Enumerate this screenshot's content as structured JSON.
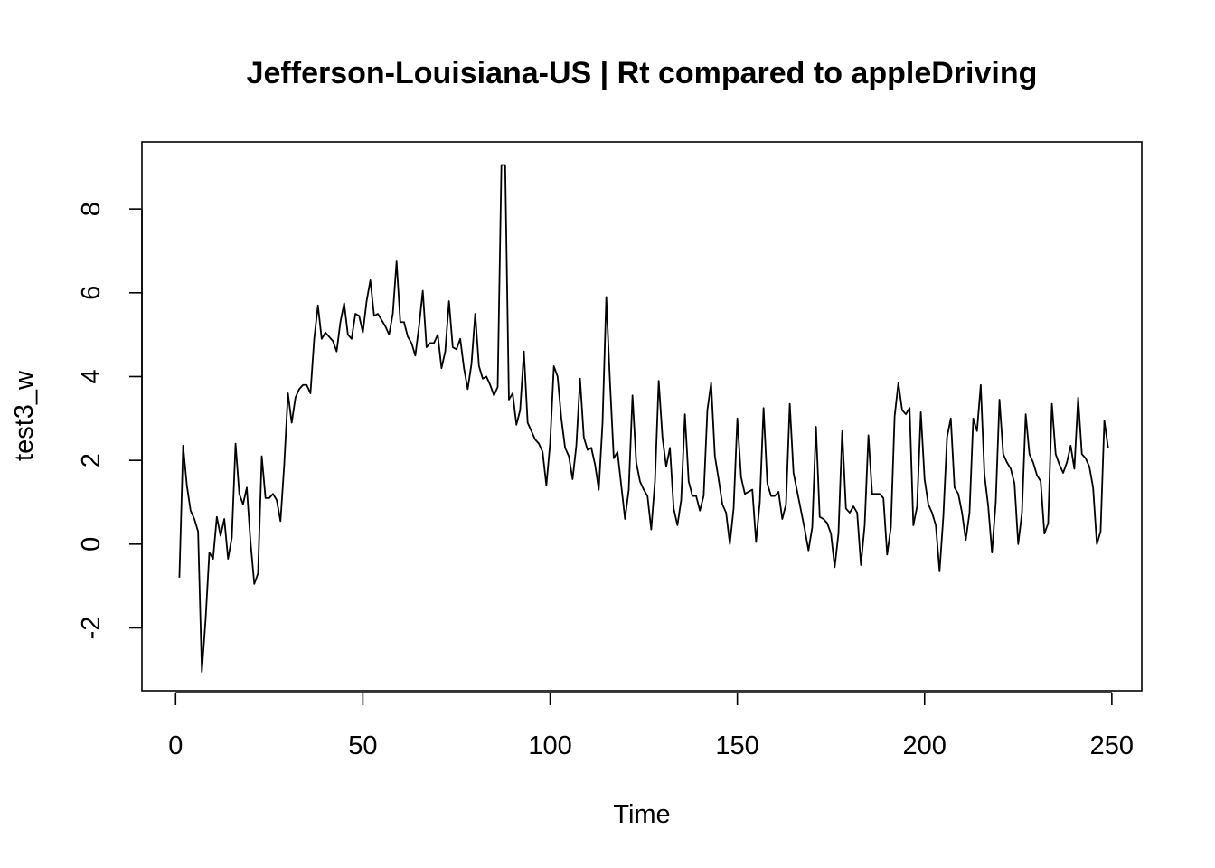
{
  "chart_data": {
    "type": "line",
    "title": "Jefferson-Louisiana-US | Rt compared to appleDriving",
    "xlabel": "Time",
    "ylabel": "test3_w",
    "xlim": [
      -9,
      258
    ],
    "ylim": [
      -3.5,
      9.6
    ],
    "x_ticks": [
      0,
      50,
      100,
      150,
      200,
      250
    ],
    "y_ticks": [
      -2,
      0,
      2,
      4,
      6,
      8
    ],
    "x_tick_labels": [
      "0",
      "50",
      "100",
      "150",
      "200",
      "250"
    ],
    "y_tick_labels": [
      "-2",
      "0",
      "2",
      "4",
      "6",
      "8"
    ],
    "grid": false,
    "series": [
      {
        "x_start": 1,
        "values": [
          -0.8,
          2.35,
          1.4,
          0.8,
          0.6,
          0.3,
          -3.05,
          -1.8,
          -0.2,
          -0.35,
          0.65,
          0.2,
          0.6,
          -0.35,
          0.15,
          2.4,
          1.2,
          0.95,
          1.35,
          0.05,
          -0.95,
          -0.7,
          2.1,
          1.1,
          1.1,
          1.2,
          1.05,
          0.55,
          1.9,
          3.6,
          2.9,
          3.5,
          3.7,
          3.8,
          3.8,
          3.6,
          4.9,
          5.7,
          4.9,
          5.05,
          4.95,
          4.85,
          4.6,
          5.3,
          5.75,
          5.0,
          4.9,
          5.5,
          5.45,
          5.05,
          5.8,
          6.3,
          5.45,
          5.5,
          5.35,
          5.2,
          5.0,
          5.5,
          6.75,
          5.3,
          5.3,
          4.95,
          4.8,
          4.5,
          5.2,
          6.05,
          4.7,
          4.8,
          4.8,
          5.0,
          4.2,
          4.6,
          5.8,
          4.7,
          4.65,
          4.9,
          4.2,
          3.7,
          4.3,
          5.5,
          4.25,
          3.95,
          4.0,
          3.8,
          3.55,
          3.75,
          9.05,
          9.05,
          3.45,
          3.6,
          2.85,
          3.2,
          4.6,
          2.9,
          2.7,
          2.5,
          2.4,
          2.2,
          1.4,
          2.4,
          4.25,
          4.0,
          3.0,
          2.3,
          2.1,
          1.55,
          2.35,
          3.95,
          2.55,
          2.25,
          2.3,
          1.9,
          1.3,
          2.9,
          5.9,
          3.85,
          2.05,
          2.2,
          1.4,
          0.6,
          1.3,
          3.55,
          1.95,
          1.5,
          1.3,
          1.15,
          0.35,
          1.5,
          3.9,
          2.55,
          1.85,
          2.3,
          0.85,
          0.45,
          1.05,
          3.1,
          1.5,
          1.15,
          1.15,
          0.8,
          1.15,
          3.2,
          3.85,
          2.1,
          1.55,
          0.95,
          0.75,
          0.0,
          0.85,
          3.0,
          1.6,
          1.2,
          1.25,
          1.3,
          0.05,
          1.0,
          3.25,
          1.45,
          1.15,
          1.15,
          1.25,
          0.6,
          0.95,
          3.35,
          1.7,
          1.25,
          0.8,
          0.35,
          -0.15,
          0.4,
          2.8,
          0.65,
          0.6,
          0.5,
          0.25,
          -0.55,
          0.25,
          2.7,
          0.85,
          0.75,
          0.9,
          0.75,
          -0.5,
          0.45,
          2.6,
          1.2,
          1.2,
          1.2,
          1.1,
          -0.25,
          0.4,
          3.05,
          3.85,
          3.2,
          3.1,
          3.25,
          0.45,
          0.9,
          3.15,
          1.55,
          0.95,
          0.75,
          0.45,
          -0.65,
          0.65,
          2.55,
          3.0,
          1.35,
          1.2,
          0.75,
          0.1,
          0.75,
          3.0,
          2.7,
          3.8,
          1.65,
          0.9,
          -0.2,
          1.0,
          3.45,
          2.15,
          1.95,
          1.8,
          1.45,
          0.0,
          0.75,
          3.1,
          2.15,
          1.95,
          1.65,
          1.5,
          0.25,
          0.5,
          3.35,
          2.15,
          1.9,
          1.7,
          1.95,
          2.35,
          1.8,
          3.5,
          2.15,
          2.05,
          1.85,
          1.35,
          0.0,
          0.3,
          2.95,
          2.3
        ]
      }
    ]
  }
}
